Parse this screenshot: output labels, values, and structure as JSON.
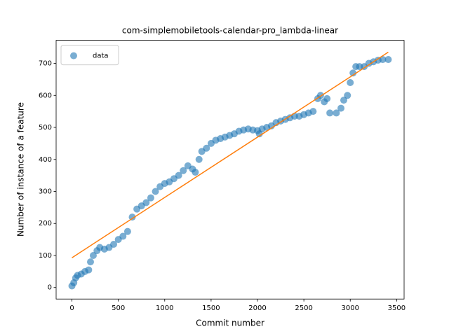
{
  "chart_data": {
    "type": "scatter",
    "title": "com-simplemobiletools-calendar-pro_lambda-linear",
    "xlabel": "Commit number",
    "ylabel": "Number of instance of a feature",
    "xlim": [
      -170.5,
      3580.5
    ],
    "ylim": [
      -36,
      772
    ],
    "xticks": [
      0,
      500,
      1000,
      1500,
      2000,
      2500,
      3000,
      3500
    ],
    "yticks": [
      0,
      100,
      200,
      300,
      400,
      500,
      600,
      700
    ],
    "legend": "upper left",
    "series": [
      {
        "name": "data",
        "color": "#1f77b4",
        "kind": "scatter",
        "x": [
          0,
          20,
          40,
          60,
          100,
          140,
          180,
          200,
          230,
          270,
          300,
          350,
          400,
          450,
          500,
          550,
          600,
          650,
          700,
          750,
          800,
          850,
          900,
          950,
          1000,
          1050,
          1100,
          1150,
          1200,
          1250,
          1300,
          1330,
          1370,
          1400,
          1450,
          1500,
          1550,
          1600,
          1650,
          1700,
          1750,
          1800,
          1850,
          1900,
          1950,
          2000,
          2020,
          2050,
          2100,
          2150,
          2200,
          2250,
          2300,
          2350,
          2400,
          2450,
          2500,
          2550,
          2600,
          2650,
          2680,
          2720,
          2750,
          2780,
          2850,
          2900,
          2930,
          2970,
          3000,
          3030,
          3060,
          3100,
          3150,
          3200,
          3250,
          3300,
          3350,
          3410
        ],
        "values": [
          5,
          15,
          30,
          38,
          42,
          50,
          55,
          80,
          100,
          115,
          125,
          120,
          125,
          135,
          150,
          160,
          175,
          220,
          245,
          255,
          265,
          280,
          300,
          315,
          325,
          330,
          340,
          350,
          365,
          380,
          370,
          360,
          400,
          425,
          435,
          450,
          460,
          465,
          470,
          475,
          480,
          488,
          492,
          495,
          492,
          490,
          480,
          495,
          500,
          505,
          515,
          520,
          525,
          530,
          535,
          535,
          540,
          545,
          550,
          590,
          600,
          580,
          590,
          545,
          545,
          560,
          585,
          600,
          640,
          670,
          690,
          690,
          690,
          700,
          705,
          710,
          712,
          712
        ]
      },
      {
        "color": "#ff7f0e",
        "kind": "line",
        "x": [
          0,
          3410
        ],
        "values": [
          93,
          735
        ]
      }
    ]
  }
}
